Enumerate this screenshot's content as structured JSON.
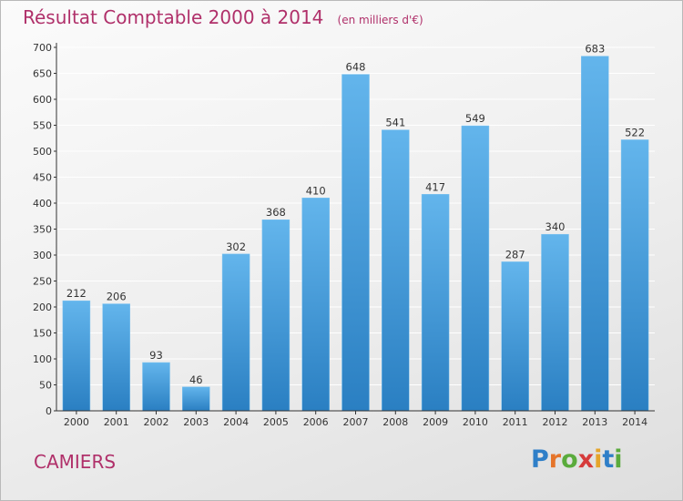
{
  "header": {
    "title": "Résultat Comptable 2000 à 2014",
    "subtitle": "(en milliers d'€)"
  },
  "footer": {
    "city": "CAMIERS",
    "logo_letters": [
      "P",
      "r",
      "o",
      "x",
      "i",
      "t",
      "i"
    ],
    "logo_colors": [
      "#2f7fc8",
      "#e5742a",
      "#5aab3c",
      "#d63b3b",
      "#e5a42a",
      "#2f7fc8",
      "#5aab3c"
    ]
  },
  "colors": {
    "bar_top": "#63b5ec",
    "bar_bottom": "#2a7fc2",
    "axis": "#333333",
    "grid": "#ffffff",
    "title": "#b0306a"
  },
  "chart_data": {
    "type": "bar",
    "title": "Résultat Comptable 2000 à 2014",
    "subtitle": "(en milliers d'€)",
    "categories": [
      "2000",
      "2001",
      "2002",
      "2003",
      "2004",
      "2005",
      "2006",
      "2007",
      "2008",
      "2009",
      "2010",
      "2011",
      "2012",
      "2013",
      "2014"
    ],
    "values": [
      212,
      206,
      93,
      46,
      302,
      368,
      410,
      648,
      541,
      417,
      549,
      287,
      340,
      683,
      522
    ],
    "ylim": [
      0,
      700
    ],
    "yticks": [
      0,
      50,
      100,
      150,
      200,
      250,
      300,
      350,
      400,
      450,
      500,
      550,
      600,
      650,
      700
    ],
    "grid": true,
    "data_labels": true
  }
}
